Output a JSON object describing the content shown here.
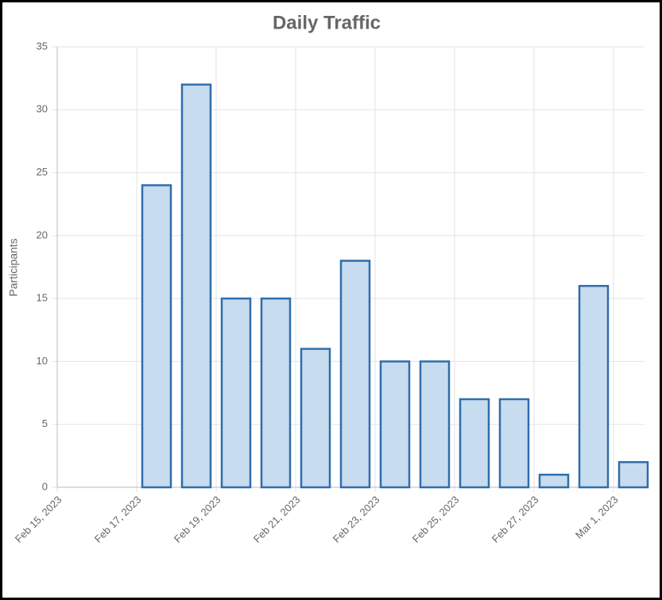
{
  "chart_data": {
    "type": "bar",
    "title": "Daily Traffic",
    "y_label": "Participants",
    "x": [
      "Feb 17, 2023",
      "Feb 18, 2023",
      "Feb 19, 2023",
      "Feb 20, 2023",
      "Feb 21, 2023",
      "Feb 22, 2023",
      "Feb 23, 2023",
      "Feb 24, 2023",
      "Feb 25, 2023",
      "Feb 26, 2023",
      "Feb 27, 2023",
      "Feb 28, 2023",
      "Mar 1, 2023"
    ],
    "values": [
      24,
      32,
      15,
      15,
      11,
      18,
      10,
      10,
      7,
      7,
      1,
      16,
      2
    ],
    "color": "#c7dcee",
    "border_color": "#2f6dad",
    "xlim": [
      "Feb 15, 2023",
      "Mar 2, 2023"
    ],
    "xticks": [
      "Feb 15, 2023",
      "Feb 17, 2023",
      "Feb 19, 2023",
      "Feb 21, 2023",
      "Feb 23, 2023",
      "Feb 25, 2023",
      "Feb 27, 2023",
      "Mar 1, 2023"
    ],
    "ylim": [
      0,
      35
    ],
    "yticks": [
      0,
      5,
      10,
      15,
      20,
      25,
      30,
      35
    ],
    "grid": true
  }
}
